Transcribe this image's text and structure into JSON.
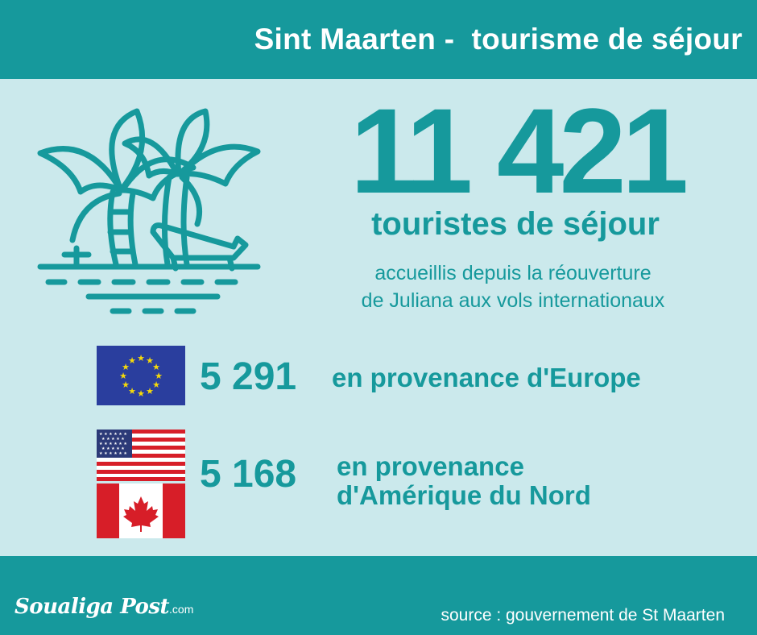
{
  "header": {
    "title": "Sint Maarten -  tourisme de séjour"
  },
  "hero": {
    "icon": "beach-palm-icon",
    "total": "11 421",
    "subtitle": "touristes de séjour",
    "description_line1": "accueillis depuis la réouverture",
    "description_line2": "de Juliana aux vols internationaux"
  },
  "stats": [
    {
      "flags": [
        "eu-flag-icon"
      ],
      "value": "5 291",
      "label_line1": "en provenance d'Europe"
    },
    {
      "flags": [
        "usa-flag-icon",
        "canada-flag-icon"
      ],
      "value": "5 168",
      "label_line1": "en provenance",
      "label_line2": "d'Amérique du Nord"
    }
  ],
  "footer": {
    "brand": "Soualiga Post",
    "brand_suffix": ".com",
    "source": "source : gouvernement de St Maarten"
  },
  "colors": {
    "teal": "#16999c",
    "background": "#cbe9ec",
    "eu_blue": "#2a3e9e",
    "eu_star": "#f5d90a",
    "red": "#d71e28"
  }
}
